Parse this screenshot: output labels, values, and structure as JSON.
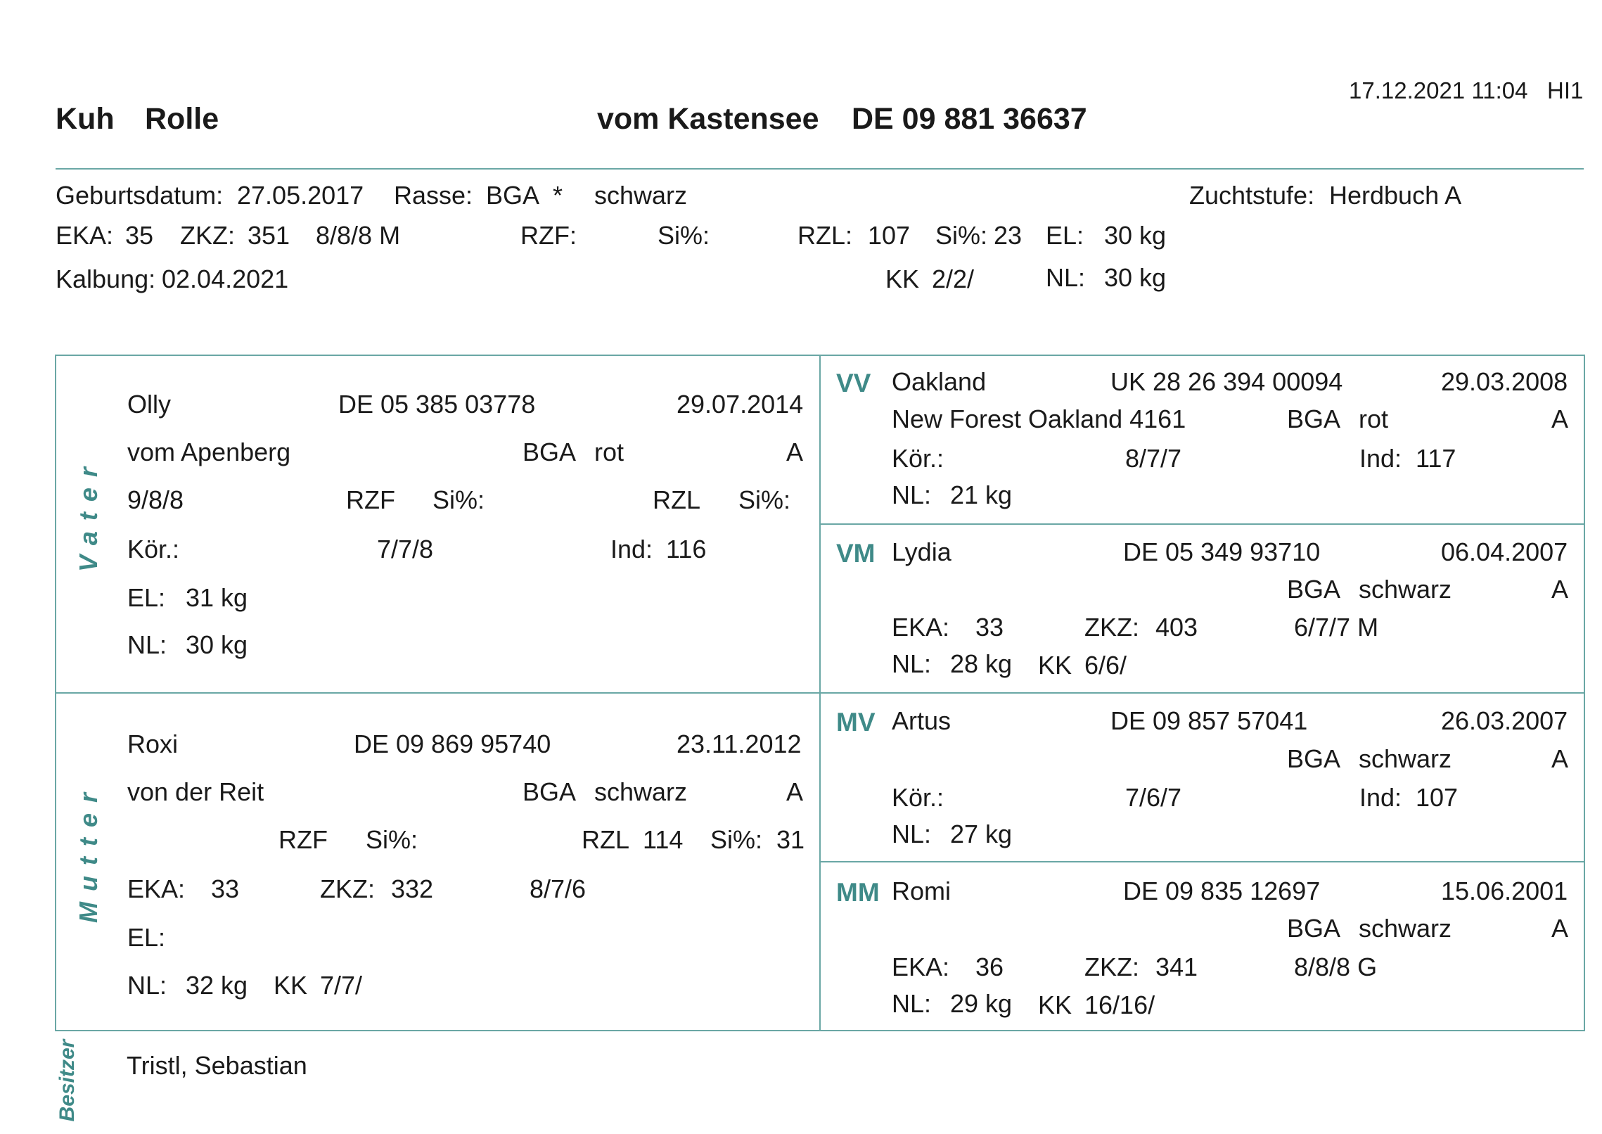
{
  "header": {
    "timestamp": "17.12.2021 11:04",
    "code": "HI1",
    "kind": "Kuh",
    "name": "Rolle",
    "herd": "vom Kastensee",
    "id": "DE 09 881 36637"
  },
  "animal": {
    "birth_label": "Geburtsdatum:",
    "birth": "27.05.2017",
    "breed_label": "Rasse:",
    "breed": "BGA",
    "breed_mark": "*",
    "color": "schwarz",
    "level_label": "Zuchtstufe:",
    "level": "Herdbuch A",
    "eka_label": "EKA:",
    "eka": "35",
    "zkz_label": "ZKZ:",
    "zkz": "351",
    "score": "8/8/8 M",
    "rzf_label": "RZF:",
    "si1_label": "Si%:",
    "rzl_label": "RZL:",
    "rzl": "107",
    "si2_label": "Si%:",
    "si2": "23",
    "el_label": "EL:",
    "el": "30 kg",
    "calving_label": "Kalbung:",
    "calving": "02.04.2021",
    "kk_label": "KK",
    "kk": "2/2/",
    "nl_label": "NL:",
    "nl": "30 kg"
  },
  "vater": {
    "side_label": "Vater",
    "name": "Olly",
    "id": "DE 05 385 03778",
    "date": "29.07.2014",
    "herd": "vom Apenberg",
    "breed": "BGA",
    "color": "rot",
    "level": "A",
    "score": "9/8/8",
    "rzf_label": "RZF",
    "si1_label": "Si%:",
    "rzl_label": "RZL",
    "si2_label": "Si%:",
    "kor_label": "Kör.:",
    "kor": "7/7/8",
    "ind_label": "Ind:",
    "ind": "116",
    "el_label": "EL:",
    "el": "31 kg",
    "nl_label": "NL:",
    "nl": "30 kg"
  },
  "mutter": {
    "side_label": "Mutter",
    "name": "Roxi",
    "id": "DE 09 869 95740",
    "date": "23.11.2012",
    "herd": "von der Reit",
    "breed": "BGA",
    "color": "schwarz",
    "level": "A",
    "rzf_label": "RZF",
    "si1_label": "Si%:",
    "rzl_label": "RZL",
    "rzl": "114",
    "si2_label": "Si%:",
    "si2": "31",
    "eka_label": "EKA:",
    "eka": "33",
    "zkz_label": "ZKZ:",
    "zkz": "332",
    "score": "8/7/6",
    "el_label": "EL:",
    "nl_label": "NL:",
    "nl": "32 kg",
    "kk_label": "KK",
    "kk": "7/7/"
  },
  "vv": {
    "label": "VV",
    "name": "Oakland",
    "id": "UK 28 26 394 00094",
    "date": "29.03.2008",
    "herd": "New Forest Oakland 4161",
    "breed": "BGA",
    "color": "rot",
    "level": "A",
    "kor_label": "Kör.:",
    "kor": "8/7/7",
    "ind_label": "Ind:",
    "ind": "117",
    "nl_label": "NL:",
    "nl": "21 kg"
  },
  "vm": {
    "label": "VM",
    "name": "Lydia",
    "id": "DE 05 349 93710",
    "date": "06.04.2007",
    "breed": "BGA",
    "color": "schwarz",
    "level": "A",
    "eka_label": "EKA:",
    "eka": "33",
    "zkz_label": "ZKZ:",
    "zkz": "403",
    "score": "6/7/7 M",
    "nl_label": "NL:",
    "nl": "28 kg",
    "kk_label": "KK",
    "kk": "6/6/"
  },
  "mv": {
    "label": "MV",
    "name": "Artus",
    "id": "DE 09 857 57041",
    "date": "26.03.2007",
    "breed": "BGA",
    "color": "schwarz",
    "level": "A",
    "kor_label": "Kör.:",
    "kor": "7/6/7",
    "ind_label": "Ind:",
    "ind": "107",
    "nl_label": "NL:",
    "nl": "27 kg"
  },
  "mm": {
    "label": "MM",
    "name": "Romi",
    "id": "DE 09 835 12697",
    "date": "15.06.2001",
    "breed": "BGA",
    "color": "schwarz",
    "level": "A",
    "eka_label": "EKA:",
    "eka": "36",
    "zkz_label": "ZKZ:",
    "zkz": "341",
    "score": "8/8/8 G",
    "nl_label": "NL:",
    "nl": "29 kg",
    "kk_label": "KK",
    "kk": "16/16/"
  },
  "owner": {
    "side_label": "Besitzer",
    "name": "Tristl, Sebastian"
  }
}
